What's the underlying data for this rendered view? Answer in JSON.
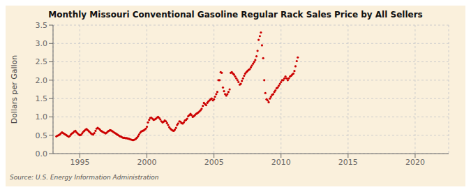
{
  "chart_data": {
    "type": "scatter",
    "title": "Monthly Missouri Conventional Gasoline Regular Rack Sales Price by All Sellers",
    "ylabel": "Dollars per Gallon",
    "annotations": [
      "Source: U.S. Energy Information Administration"
    ],
    "color": "#CC0000",
    "grid": true,
    "xlim": [
      1993.0,
      2022.5
    ],
    "ylim": [
      0.0,
      3.5
    ],
    "xticks": [
      1995,
      2000,
      2005,
      2010,
      2015,
      2020
    ],
    "yticks": [
      {
        "value": 0.0,
        "label": "0.0"
      },
      0.5,
      {
        "value": 1.0,
        "label": "1.0"
      },
      1.5,
      {
        "value": 2.0,
        "label": "2.0"
      },
      2.5,
      {
        "value": 3.0,
        "label": "3.0"
      },
      3.5
    ],
    "x": [
      1993.25,
      1993.33,
      1993.42,
      1993.5,
      1993.58,
      1993.67,
      1993.75,
      1993.83,
      1993.92,
      1994.0,
      1994.08,
      1994.17,
      1994.25,
      1994.33,
      1994.42,
      1994.5,
      1994.58,
      1994.67,
      1994.75,
      1994.83,
      1994.92,
      1995.0,
      1995.08,
      1995.17,
      1995.25,
      1995.33,
      1995.42,
      1995.5,
      1995.58,
      1995.67,
      1995.75,
      1995.83,
      1995.92,
      1996.0,
      1996.08,
      1996.17,
      1996.25,
      1996.33,
      1996.42,
      1996.5,
      1996.58,
      1996.67,
      1996.75,
      1996.83,
      1996.92,
      1997.0,
      1997.08,
      1997.17,
      1997.25,
      1997.33,
      1997.42,
      1997.5,
      1997.58,
      1997.67,
      1997.75,
      1997.83,
      1997.92,
      1998.0,
      1998.08,
      1998.17,
      1998.25,
      1998.33,
      1998.42,
      1998.5,
      1998.58,
      1998.67,
      1998.75,
      1998.83,
      1998.92,
      1999.0,
      1999.08,
      1999.17,
      1999.25,
      1999.33,
      1999.42,
      1999.5,
      1999.58,
      1999.67,
      1999.75,
      1999.83,
      1999.92,
      2000.0,
      2000.08,
      2000.17,
      2000.25,
      2000.33,
      2000.42,
      2000.5,
      2000.58,
      2000.67,
      2000.75,
      2000.83,
      2000.92,
      2001.0,
      2001.08,
      2001.17,
      2001.25,
      2001.33,
      2001.42,
      2001.5,
      2001.58,
      2001.67,
      2001.75,
      2001.83,
      2001.92,
      2002.0,
      2002.08,
      2002.17,
      2002.25,
      2002.33,
      2002.42,
      2002.5,
      2002.58,
      2002.67,
      2002.75,
      2002.83,
      2002.92,
      2003.0,
      2003.08,
      2003.17,
      2003.25,
      2003.33,
      2003.42,
      2003.5,
      2003.58,
      2003.67,
      2003.75,
      2003.83,
      2003.92,
      2004.0,
      2004.08,
      2004.17,
      2004.25,
      2004.33,
      2004.42,
      2004.5,
      2004.58,
      2004.67,
      2004.75,
      2004.83,
      2004.92,
      2005.0,
      2005.08,
      2005.17,
      2005.25,
      2005.33,
      2005.42,
      2005.5,
      2005.58,
      2005.67,
      2005.75,
      2005.83,
      2005.92,
      2006.0,
      2006.08,
      2006.17,
      2006.25,
      2006.33,
      2006.42,
      2006.5,
      2006.58,
      2006.67,
      2006.75,
      2006.83,
      2006.92,
      2007.0,
      2007.08,
      2007.17,
      2007.25,
      2007.33,
      2007.42,
      2007.5,
      2007.58,
      2007.67,
      2007.75,
      2007.83,
      2007.92,
      2008.0,
      2008.08,
      2008.17,
      2008.25,
      2008.33,
      2008.42,
      2008.5,
      2008.58,
      2008.67,
      2008.75,
      2008.83,
      2008.92,
      2009.0,
      2009.08,
      2009.17,
      2009.25,
      2009.33,
      2009.42,
      2009.5,
      2009.58,
      2009.67,
      2009.75,
      2009.83,
      2009.92,
      2010.0,
      2010.08,
      2010.17,
      2010.25,
      2010.33,
      2010.42,
      2010.5,
      2010.58,
      2010.67,
      2010.75,
      2010.83,
      2010.92,
      2011.0,
      2011.08,
      2011.17,
      2011.25
    ],
    "values": [
      0.47,
      0.49,
      0.5,
      0.52,
      0.55,
      0.58,
      0.56,
      0.54,
      0.52,
      0.5,
      0.48,
      0.46,
      0.48,
      0.52,
      0.55,
      0.57,
      0.6,
      0.62,
      0.58,
      0.55,
      0.52,
      0.5,
      0.51,
      0.55,
      0.59,
      0.62,
      0.65,
      0.67,
      0.64,
      0.61,
      0.58,
      0.55,
      0.53,
      0.52,
      0.56,
      0.62,
      0.68,
      0.7,
      0.68,
      0.65,
      0.62,
      0.6,
      0.58,
      0.57,
      0.55,
      0.57,
      0.6,
      0.62,
      0.64,
      0.63,
      0.61,
      0.59,
      0.57,
      0.55,
      0.53,
      0.51,
      0.49,
      0.47,
      0.46,
      0.44,
      0.43,
      0.43,
      0.42,
      0.42,
      0.41,
      0.4,
      0.39,
      0.38,
      0.37,
      0.37,
      0.38,
      0.4,
      0.43,
      0.47,
      0.52,
      0.57,
      0.6,
      0.62,
      0.63,
      0.65,
      0.68,
      0.73,
      0.85,
      0.92,
      0.97,
      0.98,
      0.95,
      0.92,
      0.93,
      0.95,
      0.98,
      1.0,
      0.97,
      0.93,
      0.88,
      0.85,
      0.87,
      0.9,
      0.88,
      0.83,
      0.78,
      0.72,
      0.68,
      0.65,
      0.63,
      0.62,
      0.65,
      0.7,
      0.78,
      0.82,
      0.88,
      0.87,
      0.83,
      0.82,
      0.85,
      0.9,
      0.92,
      0.95,
      1.02,
      1.05,
      1.08,
      1.05,
      1.0,
      1.02,
      1.05,
      1.08,
      1.1,
      1.12,
      1.15,
      1.18,
      1.22,
      1.3,
      1.38,
      1.35,
      1.32,
      1.38,
      1.42,
      1.45,
      1.48,
      1.5,
      1.45,
      1.48,
      1.55,
      1.62,
      1.68,
      2.0,
      2.0,
      2.22,
      2.2,
      1.8,
      1.7,
      1.62,
      1.58,
      1.62,
      1.68,
      1.75,
      2.2,
      2.22,
      2.18,
      2.15,
      2.1,
      2.05,
      2.0,
      1.95,
      1.88,
      1.9,
      1.98,
      2.05,
      2.12,
      2.18,
      2.22,
      2.25,
      2.28,
      2.3,
      2.35,
      2.4,
      2.45,
      2.5,
      2.55,
      2.65,
      2.8,
      3.1,
      3.2,
      3.3,
      2.95,
      2.6,
      2.0,
      1.65,
      1.48,
      1.45,
      1.4,
      1.5,
      1.55,
      1.6,
      1.62,
      1.68,
      1.72,
      1.78,
      1.8,
      1.85,
      1.9,
      1.95,
      2.0,
      2.0,
      2.05,
      2.1,
      2.05,
      2.0,
      2.05,
      2.1,
      2.12,
      2.15,
      2.18,
      2.25,
      2.38,
      2.52,
      2.62
    ]
  }
}
